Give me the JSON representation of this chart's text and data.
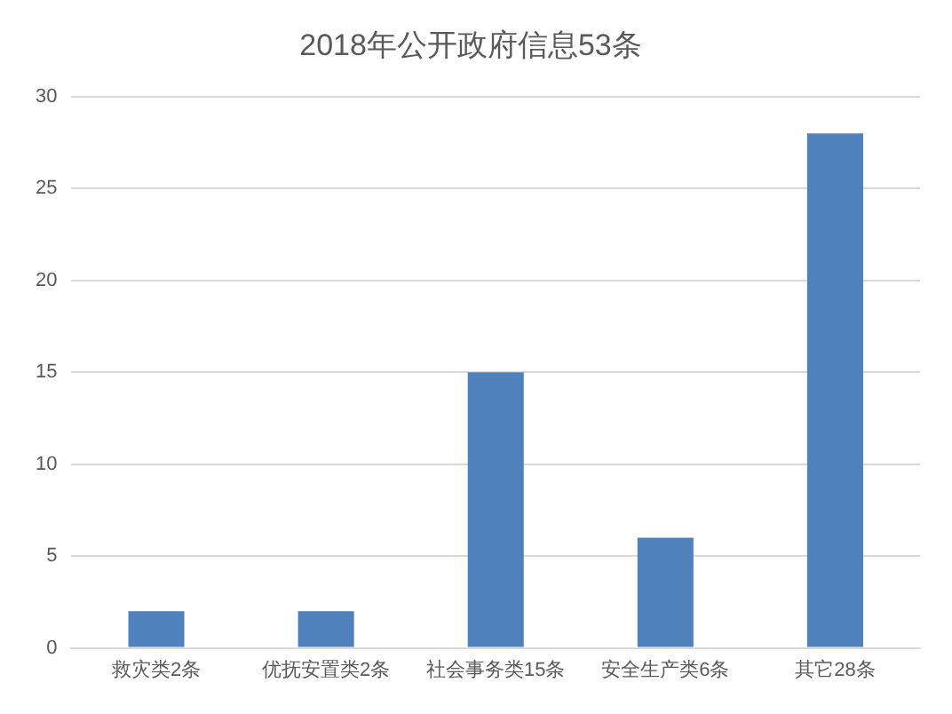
{
  "chart_data": {
    "type": "bar",
    "title": "2018年公开政府信息53条",
    "categories": [
      "救灾类2条",
      "优抚安置类2条",
      "社会事务类15条",
      "安全生产类6条",
      "其它28条"
    ],
    "values": [
      2,
      2,
      15,
      6,
      28
    ],
    "color": "#4f81bd",
    "ylim": [
      0,
      30
    ],
    "yticks": [
      0,
      5,
      10,
      15,
      20,
      25,
      30
    ],
    "grid": "y",
    "legend": false
  }
}
